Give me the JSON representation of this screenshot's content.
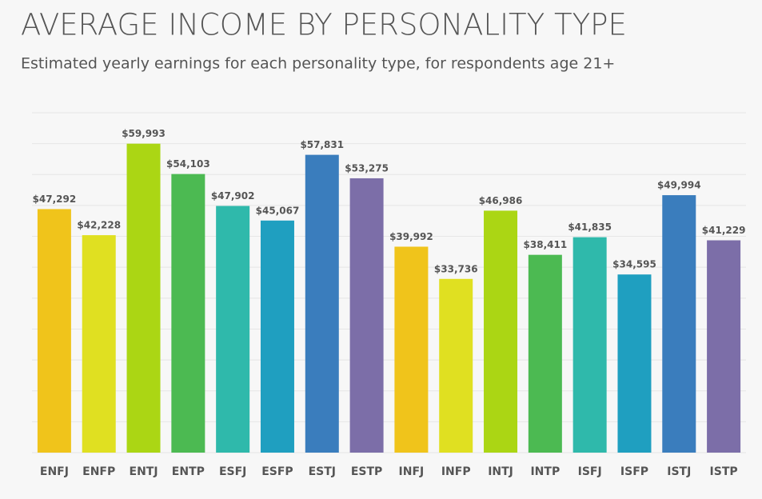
{
  "chart_data": {
    "type": "bar",
    "title": "AVERAGE INCOME BY PERSONALITY TYPE",
    "subtitle": "Estimated yearly earnings for each personality type, for respondents age 21+",
    "categories": [
      "ENFJ",
      "ENFP",
      "ENTJ",
      "ENTP",
      "ESFJ",
      "ESFP",
      "ESTJ",
      "ESTP",
      "INFJ",
      "INFP",
      "INTJ",
      "INTP",
      "ISFJ",
      "ISFP",
      "ISTJ",
      "ISTP"
    ],
    "values": [
      47292,
      42228,
      59993,
      54103,
      47902,
      45067,
      57831,
      53275,
      39992,
      33736,
      46986,
      38411,
      41835,
      34595,
      49994,
      41229
    ],
    "value_labels": [
      "$47,292",
      "$42,228",
      "$59,993",
      "$54,103",
      "$47,902",
      "$45,067",
      "$57,831",
      "$53,275",
      "$39,992",
      "$33,736",
      "$46,986",
      "$38,411",
      "$41,835",
      "$34,595",
      "$49,994",
      "$41,229"
    ],
    "colors": [
      "#f0c41b",
      "#e0e021",
      "#abd614",
      "#4cba52",
      "#2fb9ab",
      "#1f9fc0",
      "#3a7dbd",
      "#7c6ea8",
      "#f0c41b",
      "#e0e021",
      "#abd614",
      "#4cba52",
      "#2fb9ab",
      "#1f9fc0",
      "#3a7dbd",
      "#7c6ea8"
    ],
    "ylim": [
      0,
      66000
    ],
    "yticks": [
      0,
      6000,
      12000,
      18000,
      24000,
      30000,
      36000,
      42000,
      48000,
      54000,
      60000,
      66000
    ],
    "grid": true
  }
}
